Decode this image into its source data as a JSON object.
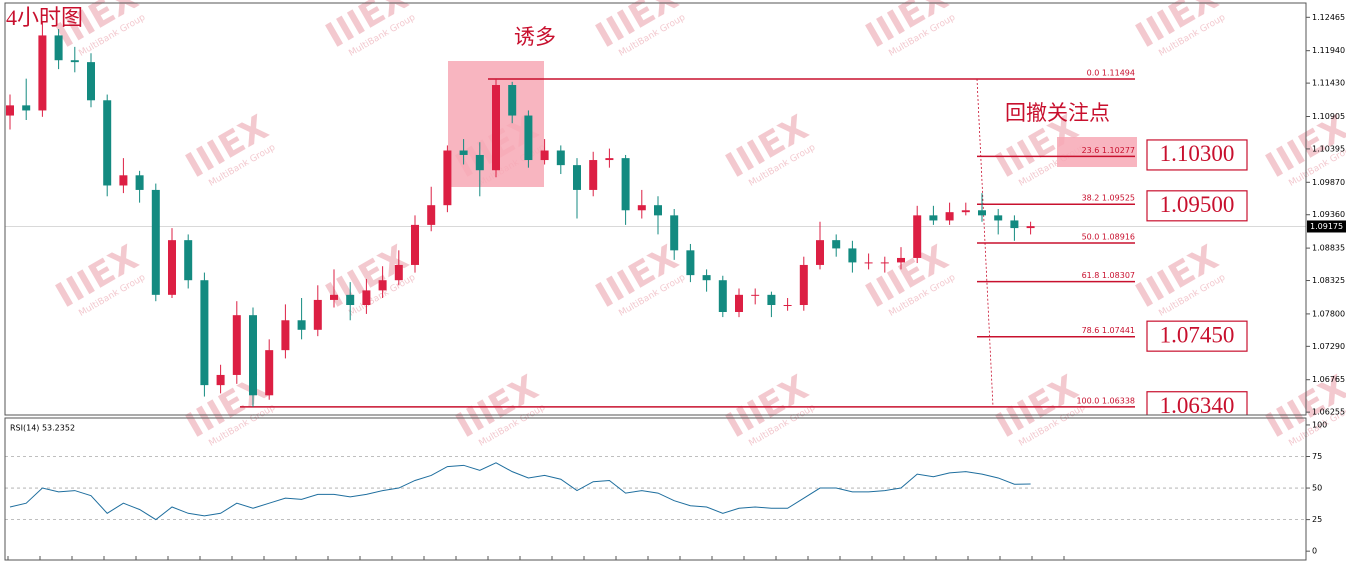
{
  "chart_data": {
    "type": "candlestick",
    "title": "4小时图",
    "colors": {
      "up": "#dc1f43",
      "down": "#138a80",
      "level": "#c8102e",
      "indicator": "#1e6e9e"
    },
    "open": [
      1.1092,
      1.1108,
      1.11,
      1.1218,
      1.1179,
      1.1176,
      1.1116,
      1.0982,
      1.0998,
      1.0975,
      1.081,
      1.0896,
      1.0833,
      1.0668,
      1.0684,
      1.0778,
      1.0652,
      1.0723,
      1.077,
      1.0755,
      1.0802,
      1.081,
      1.0794,
      1.0817,
      1.0833,
      1.0857,
      1.092,
      1.0951,
      1.1037,
      1.103,
      1.1006,
      1.114,
      1.1092,
      1.1022,
      1.1037,
      1.1014,
      1.0975,
      1.1022,
      1.1025,
      1.0943,
      1.0951,
      1.0935,
      1.088,
      1.0841,
      1.0833,
      1.0783,
      1.081,
      1.081,
      1.0794,
      1.0794,
      1.0857,
      1.0896,
      1.0883,
      1.0861,
      1.0861,
      1.0861,
      1.0868,
      1.0935,
      1.0927,
      1.094,
      1.0943,
      1.0935,
      1.0927,
      1.0915
    ],
    "high": [
      1.1125,
      1.115,
      1.124,
      1.1228,
      1.12,
      1.119,
      1.1125,
      1.1025,
      1.1005,
      1.0985,
      1.0915,
      1.0905,
      1.0845,
      1.07,
      1.08,
      1.079,
      1.074,
      1.0795,
      1.0805,
      1.0825,
      1.085,
      1.083,
      1.0835,
      1.0855,
      1.088,
      1.0935,
      1.098,
      1.1045,
      1.1055,
      1.105,
      1.1149,
      1.1145,
      1.11,
      1.1055,
      1.1045,
      1.1025,
      1.1035,
      1.104,
      1.103,
      1.0975,
      1.0965,
      1.0945,
      1.089,
      1.085,
      1.084,
      1.082,
      1.082,
      1.0815,
      1.0805,
      1.087,
      1.0925,
      1.0905,
      1.0895,
      1.0875,
      1.087,
      1.0885,
      1.095,
      1.095,
      1.0955,
      1.0955,
      1.097,
      1.0945,
      1.0935,
      1.0925
    ],
    "low": [
      1.107,
      1.1085,
      1.109,
      1.1165,
      1.116,
      1.1105,
      1.0965,
      1.097,
      1.0955,
      1.08,
      1.0805,
      1.082,
      1.065,
      1.0655,
      1.067,
      1.0634,
      1.0645,
      1.071,
      1.074,
      1.0745,
      1.079,
      1.077,
      1.078,
      1.0805,
      1.0825,
      1.0845,
      1.091,
      1.094,
      1.1015,
      1.0965,
      1.0995,
      1.108,
      1.101,
      1.1015,
      1.1,
      1.093,
      1.0965,
      1.101,
      1.092,
      1.093,
      1.0905,
      1.0865,
      1.083,
      1.0815,
      1.0775,
      1.0775,
      1.0795,
      1.0775,
      1.0785,
      1.0785,
      1.085,
      1.087,
      1.0845,
      1.085,
      1.0845,
      1.085,
      1.086,
      1.092,
      1.092,
      1.0935,
      1.0925,
      1.0905,
      1.0895,
      1.0905
    ],
    "close": [
      1.1108,
      1.11,
      1.1218,
      1.1179,
      1.1176,
      1.1116,
      1.0982,
      1.0998,
      1.0975,
      1.081,
      1.0896,
      1.0833,
      1.0668,
      1.0684,
      1.0778,
      1.0652,
      1.0723,
      1.077,
      1.0755,
      1.0802,
      1.081,
      1.0794,
      1.0817,
      1.0833,
      1.0857,
      1.092,
      1.0951,
      1.1037,
      1.103,
      1.1006,
      1.114,
      1.1092,
      1.1022,
      1.1037,
      1.1014,
      1.0975,
      1.1022,
      1.1025,
      1.0943,
      1.0951,
      1.0935,
      1.088,
      1.0841,
      1.0833,
      1.0783,
      1.081,
      1.081,
      1.0794,
      1.0794,
      1.0857,
      1.0896,
      1.0883,
      1.0861,
      1.0861,
      1.0861,
      1.0868,
      1.0935,
      1.0927,
      1.094,
      1.0943,
      1.0935,
      1.0927,
      1.0915,
      1.0918
    ],
    "ylim": [
      1.0621,
      1.1269
    ],
    "yticks": [
      1.12465,
      {
        "value": 1.1194,
        "label": "1.11940"
      },
      {
        "value": 1.1143,
        "label": "1.11430"
      },
      1.10905,
      1.10395,
      {
        "value": 1.0987,
        "label": "1.09870"
      },
      {
        "value": 1.0936,
        "label": "1.09360"
      },
      1.08835,
      1.08325,
      {
        "value": 1.078,
        "label": "1.07800"
      },
      {
        "value": 1.0729,
        "label": "1.07290"
      },
      1.06765,
      1.06255
    ],
    "current_price": 1.09175,
    "fib_levels": [
      {
        "value": 1.11494,
        "label": "0.0  1.11494"
      },
      {
        "value": 1.10277,
        "label": "23.6  1.10277"
      },
      {
        "value": 1.09525,
        "label": "38.2  1.09525"
      },
      {
        "value": 1.08916,
        "label": "50.0  1.08916"
      },
      {
        "value": 1.08307,
        "label": "61.8  1.08307"
      },
      {
        "value": 1.07441,
        "label": "78.6  1.07441"
      },
      {
        "value": 1.06338,
        "label": "100.0  1.06338"
      }
    ],
    "targets": [
      {
        "value": 1.103,
        "label": "1.10300"
      },
      {
        "value": 1.095,
        "label": "1.09500"
      },
      {
        "value": 1.0745,
        "label": "1.07450"
      },
      {
        "value": 1.0634,
        "label": "1.06340"
      }
    ],
    "annotations": {
      "trap": "诱多",
      "watch": "回撤关注点"
    },
    "watermark": {
      "logo": "IIIEX",
      "text": "MultiBank Group"
    },
    "indicator": {
      "type": "line",
      "name": "RSI(14) 53.2352",
      "values": [
        35,
        38,
        50,
        47,
        48,
        44,
        30,
        38,
        33,
        25,
        35,
        30,
        28,
        30,
        38,
        34,
        38,
        42,
        41,
        45,
        45,
        43,
        45,
        48,
        50,
        56,
        60,
        67,
        68,
        64,
        70,
        63,
        58,
        60,
        57,
        48,
        55,
        56,
        46,
        48,
        46,
        40,
        36,
        35,
        30,
        34,
        35,
        34,
        34,
        42,
        50,
        50,
        47,
        47,
        48,
        50,
        61,
        59,
        62,
        63,
        61,
        58,
        53,
        53.2
      ],
      "ylim": [
        -7,
        105.5
      ],
      "yticks": [
        100,
        75,
        50,
        25,
        0
      ],
      "grid_levels": [
        75,
        50,
        25
      ]
    }
  }
}
